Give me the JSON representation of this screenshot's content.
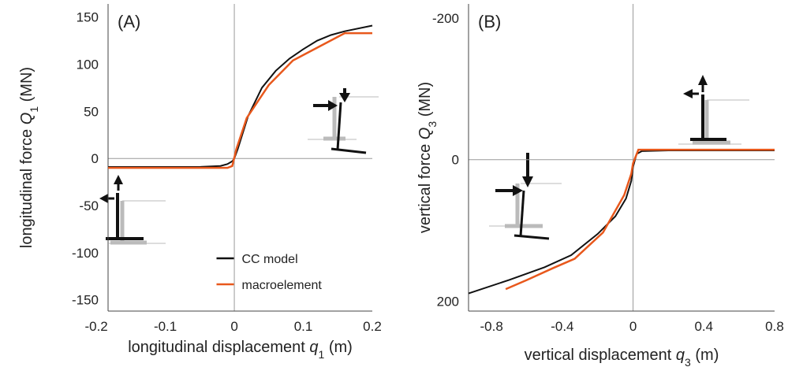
{
  "chart_data": [
    {
      "type": "line",
      "annotation": "(A)",
      "xlabel": [
        "longitudinal displacement ",
        "q",
        "1",
        " (m)"
      ],
      "ylabel": [
        "longitudinal force ",
        "Q",
        "1",
        " (MN)"
      ],
      "xlim": [
        -0.183,
        0.2
      ],
      "xticks": [
        -0.2,
        -0.1,
        0,
        0.1,
        0.2
      ],
      "ylim": [
        -162,
        164
      ],
      "yticks": [
        150,
        100,
        50,
        0,
        -50,
        -100,
        -150
      ],
      "zero_lines": true,
      "legend": "lower center",
      "series": [
        {
          "name": "CC model",
          "color": "#111111",
          "x": [
            -0.183,
            -0.05,
            -0.02,
            -0.01,
            -0.003,
            0,
            0.005,
            0.02,
            0.04,
            0.06,
            0.08,
            0.1,
            0.12,
            0.14,
            0.16,
            0.2
          ],
          "values": [
            -9,
            -9,
            -8,
            -6,
            -3,
            0,
            10,
            45,
            75,
            93,
            106,
            116,
            125,
            131,
            135,
            141
          ]
        },
        {
          "name": "macroelement",
          "color": "#e8581c",
          "x": [
            -0.183,
            -0.01,
            -0.003,
            0.003,
            0.018,
            0.05,
            0.085,
            0.16,
            0.2
          ],
          "values": [
            -10,
            -10,
            -8,
            10,
            43,
            78,
            104,
            133,
            133
          ]
        }
      ]
    },
    {
      "type": "line",
      "annotation": "(B)",
      "xlabel": [
        "vertical displacement ",
        "q",
        "3",
        " (m)"
      ],
      "ylabel": [
        "vertical force ",
        "Q",
        "3",
        " (MN)"
      ],
      "xlim": [
        -0.93,
        0.8
      ],
      "xticks": [
        -0.8,
        -0.4,
        0,
        0.4,
        0.8
      ],
      "ylim": [
        214,
        -220
      ],
      "yticks": [
        -200,
        0,
        200
      ],
      "zero_lines": true,
      "series": [
        {
          "color": "#111111",
          "x": [
            -0.93,
            -0.7,
            -0.5,
            -0.35,
            -0.2,
            -0.1,
            -0.04,
            -0.01,
            0,
            0.02,
            0.05,
            0.2,
            0.8
          ],
          "values": [
            189,
            170,
            152,
            135,
            105,
            80,
            55,
            30,
            10,
            -8,
            -12,
            -13,
            -13
          ]
        },
        {
          "color": "#e8581c",
          "x": [
            -0.72,
            -0.6,
            -0.45,
            -0.33,
            -0.17,
            -0.05,
            -0.01,
            0,
            0.03,
            0.8
          ],
          "values": [
            183,
            170,
            153,
            140,
            103,
            50,
            20,
            5,
            -14,
            -14
          ]
        }
      ]
    }
  ]
}
